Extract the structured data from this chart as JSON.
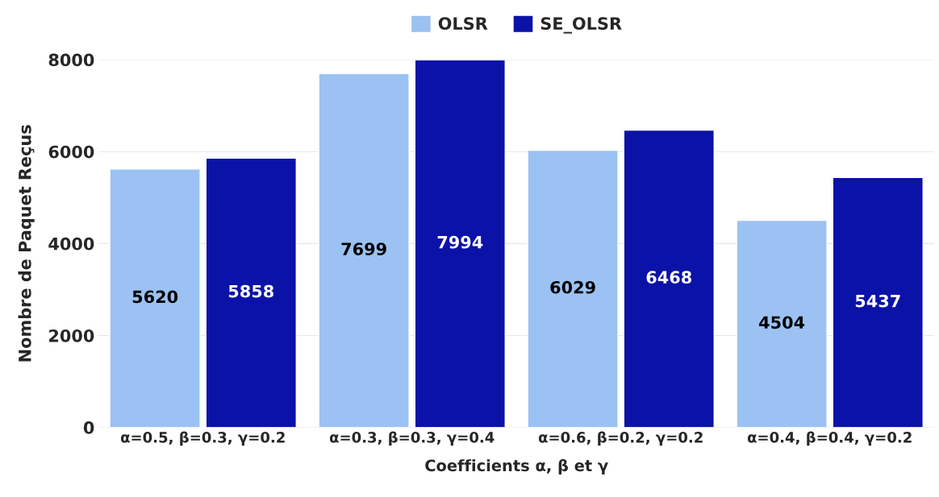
{
  "chart_data": {
    "type": "bar",
    "xlabel": "Coefficients α, β et γ",
    "ylabel": "Nombre de Paquet Reçus",
    "categories": [
      "α=0.5, β=0.3, γ=0.2",
      "α=0.3, β=0.3, γ=0.4",
      "α=0.6, β=0.2, γ=0.2",
      "α=0.4, β=0.4, γ=0.2"
    ],
    "series": [
      {
        "name": "OLSR",
        "color": "#9bc2f3",
        "values": [
          5620,
          7699,
          6029,
          4504
        ]
      },
      {
        "name": "SE_OLSR",
        "color": "#0b12a8",
        "values": [
          5858,
          7994,
          6468,
          5437
        ]
      }
    ],
    "ylim": [
      0,
      8000
    ],
    "yticks": [
      0,
      2000,
      4000,
      6000,
      8000
    ],
    "grid": "y",
    "legend": "top",
    "data_labels": true
  }
}
